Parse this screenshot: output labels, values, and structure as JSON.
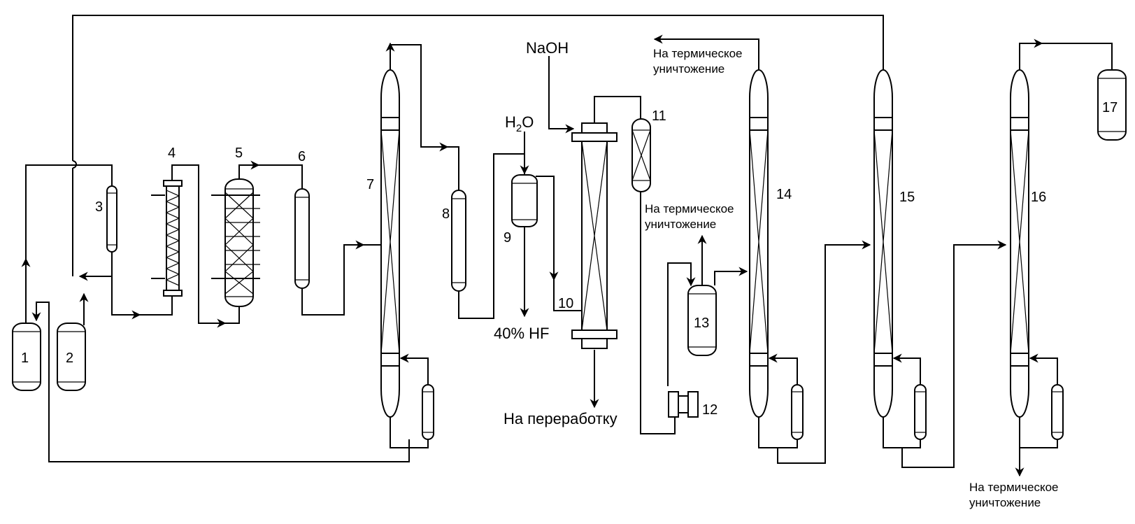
{
  "units": [
    {
      "id": "unit-1",
      "label": "1"
    },
    {
      "id": "unit-2",
      "label": "2"
    },
    {
      "id": "unit-3",
      "label": "3"
    },
    {
      "id": "unit-4",
      "label": "4"
    },
    {
      "id": "unit-5",
      "label": "5"
    },
    {
      "id": "unit-6",
      "label": "6"
    },
    {
      "id": "unit-7",
      "label": "7"
    },
    {
      "id": "unit-8",
      "label": "8"
    },
    {
      "id": "unit-9",
      "label": "9"
    },
    {
      "id": "unit-10",
      "label": "10"
    },
    {
      "id": "unit-11",
      "label": "11"
    },
    {
      "id": "unit-12",
      "label": "12"
    },
    {
      "id": "unit-13",
      "label": "13"
    },
    {
      "id": "unit-14",
      "label": "14"
    },
    {
      "id": "unit-15",
      "label": "15"
    },
    {
      "id": "unit-16",
      "label": "16"
    },
    {
      "id": "unit-17",
      "label": "17"
    }
  ],
  "streams": {
    "naoh": "NaOH",
    "h2o_h": "H",
    "h2o_sub": "2",
    "h2o_o": "O",
    "hf": "40% HF",
    "recycle": "На переработку",
    "incineration_line1": "На термическое",
    "incineration_line2": "уничтожение"
  }
}
